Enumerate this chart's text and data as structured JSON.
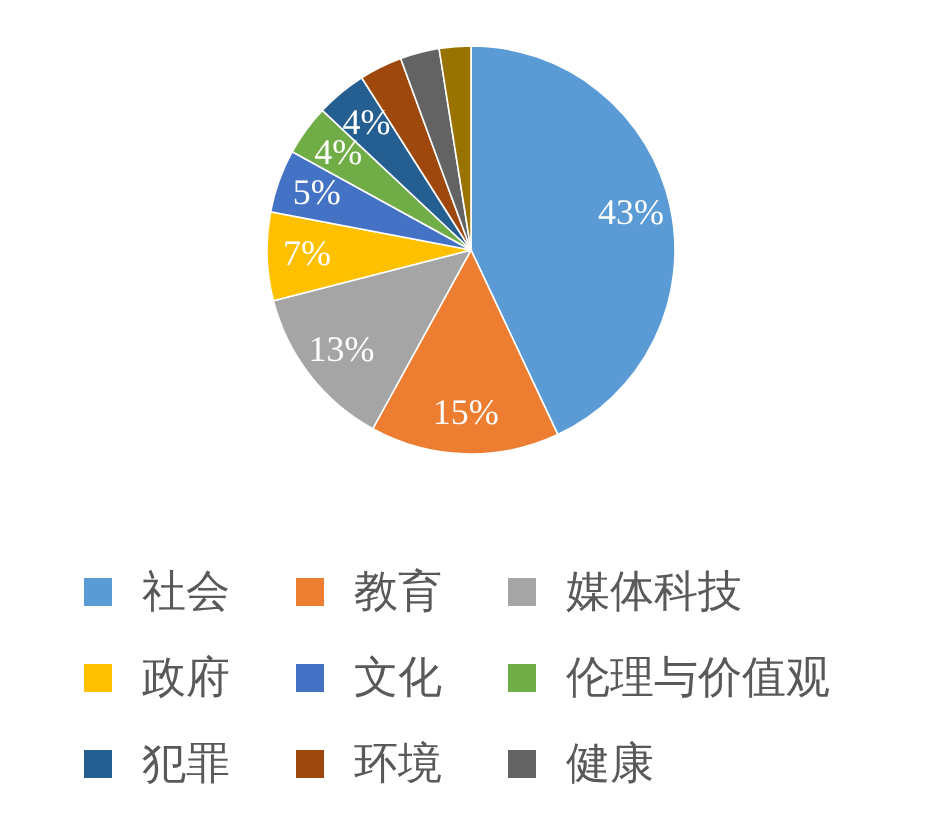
{
  "chart_data": {
    "type": "pie",
    "categories": [
      "社会",
      "教育",
      "媒体科技",
      "政府",
      "文化",
      "伦理与价值观",
      "犯罪",
      "环境",
      "健康",
      null
    ],
    "values": [
      43,
      15,
      13,
      7,
      5,
      4,
      4,
      3.4,
      3.1,
      2.5
    ],
    "value_labels": [
      "43%",
      "15%",
      "13%",
      "7%",
      "5%",
      "4%",
      "4%",
      null,
      null,
      null
    ],
    "colors": [
      "#5b9bd5",
      "#ed7d31",
      "#a5a5a5",
      "#ffc000",
      "#4472c4",
      "#70ad47",
      "#255e91",
      "#9e480e",
      "#636363",
      "#997300"
    ],
    "legend": "bottom"
  }
}
